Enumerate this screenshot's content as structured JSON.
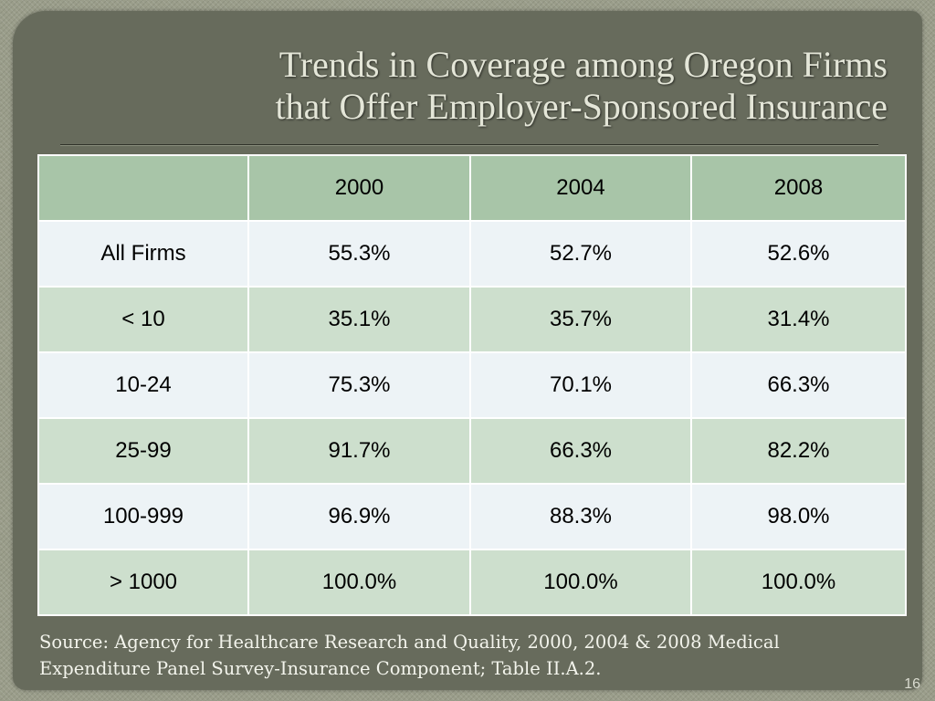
{
  "slide": {
    "title_lines": [
      "Trends in Coverage among Oregon Firms",
      "that Offer Employer-Sponsored Insurance"
    ],
    "source_lines": [
      "Source: Agency for Healthcare Research and Quality, 2000, 2004 & 2008 Medical",
      "Expenditure Panel Survey-Insurance Component; Table II.A.2."
    ],
    "slide_number": "16"
  },
  "table": {
    "headers": [
      "",
      "2000",
      "2004",
      "2008"
    ],
    "rows": [
      [
        "All Firms",
        "55.3%",
        "52.7%",
        "52.6%"
      ],
      [
        "< 10",
        "35.1%",
        "35.7%",
        "31.4%"
      ],
      [
        "10-24",
        "75.3%",
        "70.1%",
        "66.3%"
      ],
      [
        "25-99",
        "91.7%",
        "66.3%",
        "82.2%"
      ],
      [
        "100-999",
        "96.9%",
        "88.3%",
        "98.0%"
      ],
      [
        "> 1000",
        "100.0%",
        "100.0%",
        "100.0%"
      ]
    ]
  },
  "colors": {
    "background": "#9a9d8a",
    "panel": "#676b5c",
    "title_text": "#e4e6d8",
    "header_fill": "#a8c5a8",
    "row_light": "#edf3f6",
    "row_green": "#cddfcd"
  }
}
